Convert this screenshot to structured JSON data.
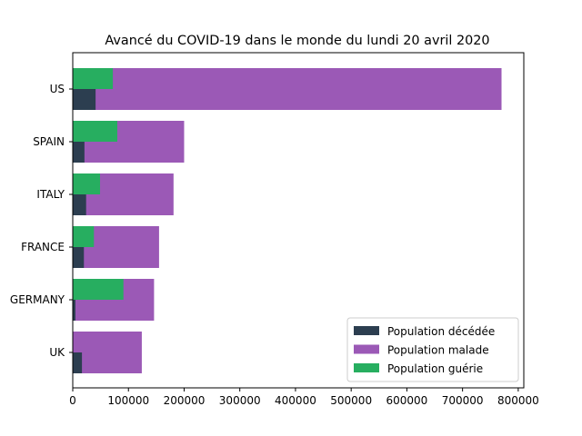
{
  "chart_data": {
    "type": "bar",
    "orientation": "horizontal",
    "title": "Avancé du COVID-19 dans le monde du lundi 20 avril 2020",
    "xlabel": "",
    "ylabel": "",
    "xlim": [
      0,
      810000
    ],
    "xticks": [
      0,
      100000,
      200000,
      300000,
      400000,
      500000,
      600000,
      700000,
      800000
    ],
    "grid": false,
    "legend_position": "bottom-right",
    "categories": [
      "US",
      "SPAIN",
      "ITALY",
      "FRANCE",
      "GERMANY",
      "UK"
    ],
    "series": [
      {
        "name": "Population malade",
        "color": "#9b59b6",
        "values": [
          770000,
          200000,
          181000,
          155000,
          146000,
          124000
        ]
      },
      {
        "name": "Population décédée",
        "color": "#2c3e50",
        "values": [
          41000,
          21000,
          24000,
          20000,
          4800,
          16500
        ]
      },
      {
        "name": "Population guérie",
        "color": "#27ae60",
        "values": [
          72000,
          80000,
          49000,
          38000,
          91000,
          0
        ]
      }
    ],
    "legend_order": [
      "Population décédée",
      "Population malade",
      "Population guérie"
    ]
  }
}
